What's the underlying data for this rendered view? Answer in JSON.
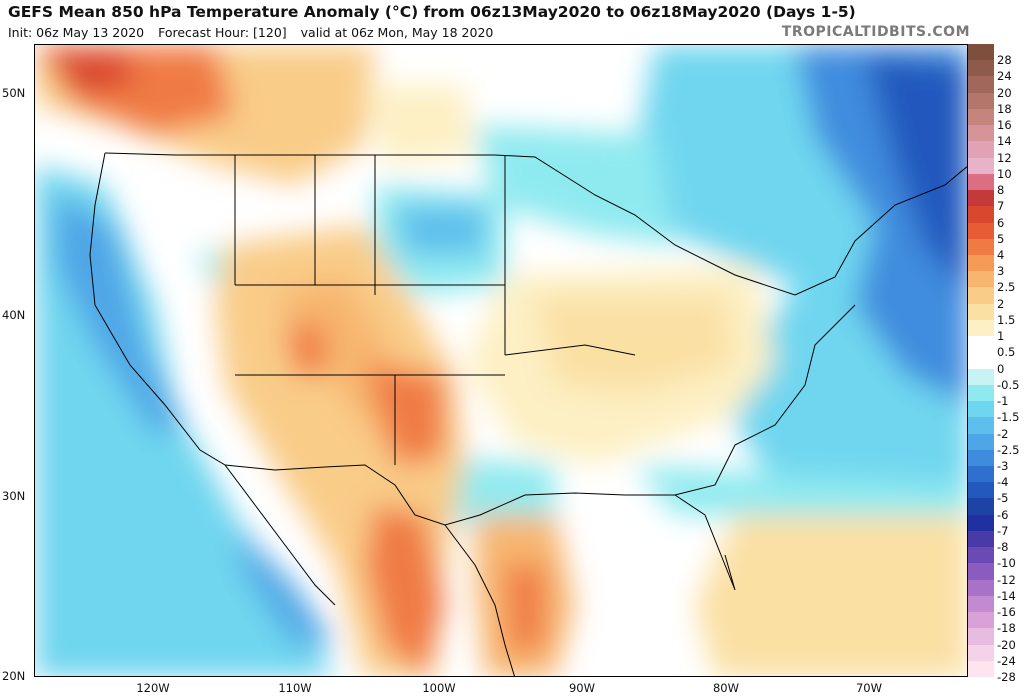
{
  "header": {
    "title": "GEFS Mean 850 hPa Temperature Anomaly (°C) from 06z13May2020 to 06z18May2020 (Days 1-5)",
    "init": "Init: 06z May 13 2020",
    "forecast_hour": "Forecast Hour: [120]",
    "valid": "valid at 06z Mon, May 18 2020",
    "brand": "TROPICALTIDBITS.COM"
  },
  "map": {
    "lat_labels": [
      "50N",
      "40N",
      "30N",
      "20N"
    ],
    "lon_labels": [
      "120W",
      "110W",
      "100W",
      "90W",
      "80W",
      "70W"
    ]
  },
  "colorbar": {
    "labels": [
      "28",
      "24",
      "20",
      "18",
      "16",
      "14",
      "12",
      "10",
      "8",
      "7",
      "6",
      "5",
      "4",
      "3",
      "2.5",
      "2",
      "1.5",
      "1",
      "0.5",
      "0",
      "-0.5",
      "-1",
      "-1.5",
      "-2",
      "-2.5",
      "-3",
      "-4",
      "-5",
      "-6",
      "-7",
      "-8",
      "-10",
      "-12",
      "-14",
      "-16",
      "-18",
      "-20",
      "-24",
      "-28"
    ],
    "colors": [
      "#7d4f3c",
      "#8e5a4a",
      "#a0675a",
      "#b3766a",
      "#c5847c",
      "#d6939a",
      "#e0a2b4",
      "#e8b2c8",
      "#dc6e84",
      "#c43a3a",
      "#d9472f",
      "#e85c35",
      "#f07a44",
      "#f59b56",
      "#f7b670",
      "#f9cc88",
      "#fbe0a4",
      "#fdf0c4",
      "#ffffff",
      "#ffffff",
      "#c8f3f5",
      "#8feaf0",
      "#6fd6ef",
      "#5fbfec",
      "#4fa6e6",
      "#3f8cde",
      "#2f70cf",
      "#2358bd",
      "#1d43a6",
      "#2030a0",
      "#4a3aa8",
      "#6a4ab5",
      "#8a5cc0",
      "#a872c8",
      "#c28ad0",
      "#d8a2d8",
      "#e8bce0",
      "#f4d2e8",
      "#fde4ee"
    ]
  }
}
